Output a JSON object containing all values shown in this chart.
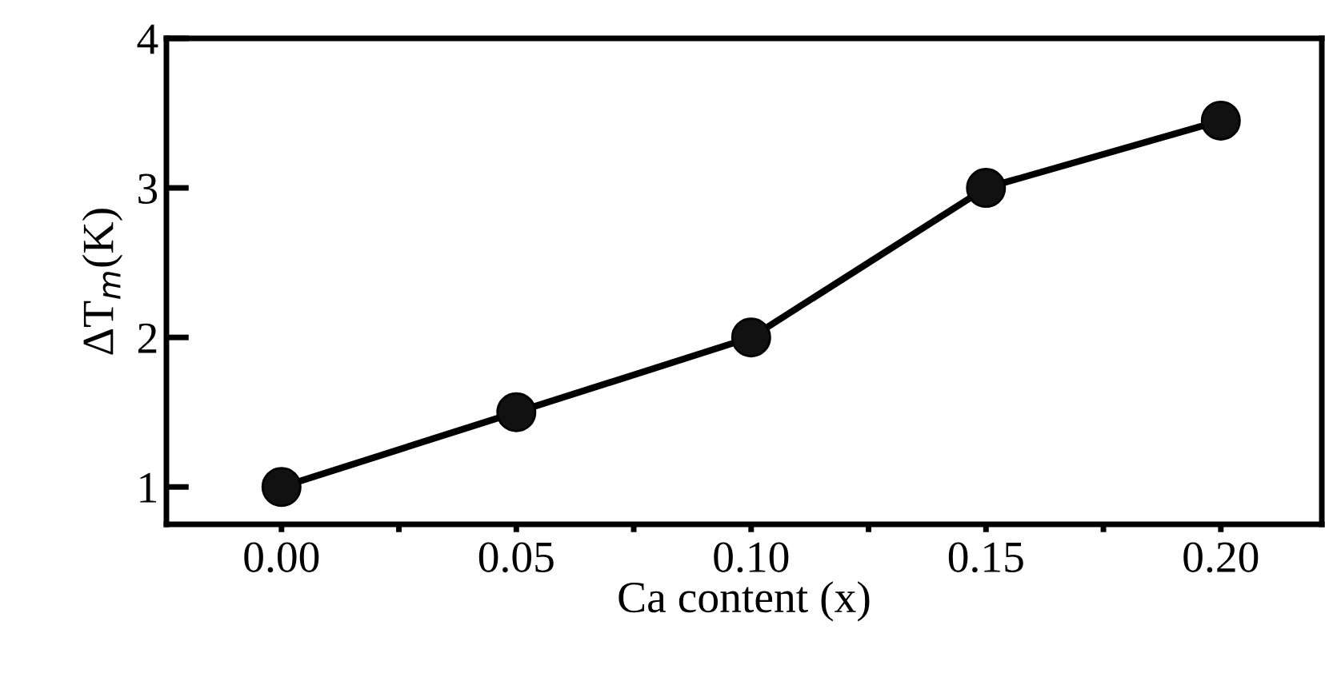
{
  "chart_data": {
    "type": "line",
    "xlabel": "Ca content (x)",
    "ylabel": "ΔT$_{m}$(K)",
    "x": [
      0.0,
      0.05,
      0.1,
      0.15,
      0.2
    ],
    "series": [
      {
        "color": "#000000",
        "values": [
          1.0,
          1.5,
          2.0,
          3.0,
          3.45
        ]
      }
    ],
    "xlim": [
      -0.0245,
      0.2215
    ],
    "ylim": [
      0.75,
      4.0
    ],
    "xticks": [
      {
        "value": 0.0,
        "label": "0.00"
      },
      {
        "value": 0.025,
        "label": null
      },
      {
        "value": 0.05,
        "label": "0.05"
      },
      {
        "value": 0.075,
        "label": null
      },
      {
        "value": 0.1,
        "label": "0.10"
      },
      {
        "value": 0.125,
        "label": null
      },
      {
        "value": 0.15,
        "label": "0.15"
      },
      {
        "value": 0.175,
        "label": null
      },
      {
        "value": 0.2,
        "label": "0.20"
      }
    ],
    "yticks": [
      1,
      2,
      3,
      4
    ],
    "marker": "circle",
    "line_style": "solid",
    "grid": false,
    "legend": false
  }
}
